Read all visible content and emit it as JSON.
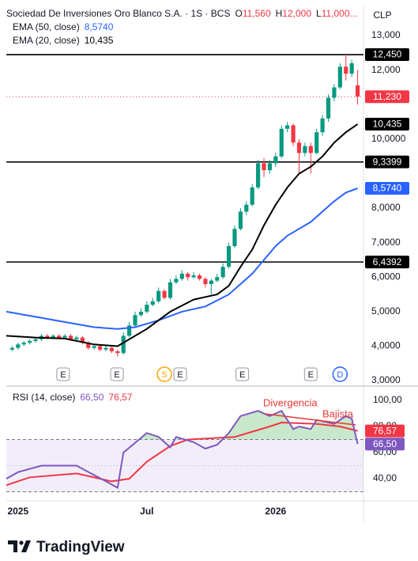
{
  "chart_data": [
    {
      "type": "candlestick",
      "title": "Sociedad De Inversiones Oro Blanco S.A. · 1S · BCS",
      "ohlc_header": [
        {
          "key": "O",
          "value": "11,560"
        },
        {
          "key": "H",
          "value": "12,000"
        },
        {
          "key": "L",
          "value": "11,000..."
        }
      ],
      "currency": "CLP",
      "open": [
        3.9,
        3.95,
        4.05,
        4.1,
        4.15,
        4.2,
        4.3,
        4.25,
        4.3,
        4.25,
        4.3,
        4.2,
        4.25,
        4.1,
        3.95,
        4.0,
        3.9,
        3.95,
        3.85,
        3.8,
        4.3,
        4.6,
        4.9,
        5.0,
        5.2,
        5.3,
        5.6,
        5.4,
        5.85,
        5.95,
        6.1,
        6.0,
        6.05,
        5.95,
        5.8,
        5.9,
        6.0,
        6.3,
        6.9,
        7.4,
        7.9,
        8.1,
        8.6,
        9.3,
        9.1,
        9.3,
        9.5,
        10.3,
        10.4,
        9.9,
        9.6,
        9.8,
        9.6,
        10.2,
        10.6,
        11.2,
        11.5,
        12.1,
        11.9,
        11.56
      ],
      "high": [
        4.0,
        4.1,
        4.15,
        4.2,
        4.25,
        4.35,
        4.35,
        4.35,
        4.35,
        4.35,
        4.35,
        4.3,
        4.3,
        4.15,
        4.05,
        4.05,
        4.0,
        4.0,
        3.9,
        4.4,
        4.7,
        5.0,
        5.1,
        5.3,
        5.4,
        5.7,
        5.65,
        5.95,
        6.05,
        6.2,
        6.15,
        6.15,
        6.1,
        6.0,
        5.95,
        6.1,
        6.4,
        7.0,
        7.5,
        8.0,
        8.2,
        8.7,
        9.4,
        9.45,
        9.4,
        9.6,
        10.4,
        10.5,
        10.45,
        10.0,
        9.9,
        9.9,
        10.3,
        10.7,
        11.3,
        11.6,
        12.2,
        12.45,
        12.3,
        12.0
      ],
      "low": [
        3.85,
        3.9,
        4.0,
        4.05,
        4.1,
        4.15,
        4.2,
        4.2,
        4.2,
        4.2,
        4.15,
        4.15,
        4.05,
        3.9,
        3.9,
        3.85,
        3.85,
        3.8,
        3.7,
        3.75,
        4.25,
        4.55,
        4.85,
        4.95,
        5.15,
        5.25,
        5.35,
        5.35,
        5.8,
        5.9,
        5.9,
        5.95,
        5.9,
        5.7,
        5.5,
        5.85,
        5.95,
        6.25,
        6.85,
        7.35,
        7.8,
        8.05,
        8.55,
        8.9,
        9.0,
        9.2,
        9.45,
        10.2,
        9.8,
        9.0,
        9.5,
        9.0,
        9.55,
        10.1,
        10.5,
        11.1,
        11.45,
        11.7,
        11.8,
        11.0
      ],
      "close": [
        3.95,
        4.05,
        4.1,
        4.15,
        4.2,
        4.3,
        4.25,
        4.3,
        4.25,
        4.3,
        4.2,
        4.25,
        4.1,
        3.95,
        4.0,
        3.9,
        3.95,
        3.85,
        3.8,
        4.3,
        4.6,
        4.9,
        5.0,
        5.2,
        5.3,
        5.6,
        5.4,
        5.85,
        5.95,
        6.1,
        6.0,
        6.05,
        5.95,
        5.8,
        5.9,
        6.0,
        6.3,
        6.9,
        7.4,
        7.9,
        8.1,
        8.6,
        9.3,
        9.1,
        9.3,
        9.5,
        10.3,
        10.4,
        9.9,
        9.6,
        9.8,
        9.6,
        10.2,
        10.6,
        11.2,
        11.5,
        12.1,
        11.9,
        12.2,
        11.23
      ],
      "up_color": "#089981",
      "down_color": "#f23645",
      "xlim": [
        0,
        61
      ],
      "xticks": [
        {
          "value": 2,
          "label": "2025"
        },
        {
          "value": 24,
          "label": "Jul"
        },
        {
          "value": 46,
          "label": "2026"
        }
      ],
      "ylim": [
        2.91,
        13.85
      ],
      "yticks": [
        {
          "value": 13,
          "label": "13,000"
        },
        {
          "value": 12,
          "label": "12,000"
        },
        {
          "value": 10,
          "label": "10,0000"
        },
        {
          "value": 8,
          "label": "8,0000"
        },
        {
          "value": 7,
          "label": "7,0000"
        },
        {
          "value": 6,
          "label": "6,0000"
        },
        {
          "value": 5,
          "label": "5,0000"
        },
        {
          "value": 4,
          "label": "4,0000"
        },
        {
          "value": 3,
          "label": "3,0000"
        }
      ],
      "series": [
        {
          "name": "EMA (50, close)",
          "color": "#2962ff",
          "x": [
            0,
            5,
            10,
            15,
            19,
            22,
            26,
            30,
            34,
            38,
            42,
            44,
            46,
            48,
            50,
            52,
            54,
            56,
            58,
            60
          ],
          "values": [
            5.0,
            4.85,
            4.7,
            4.55,
            4.5,
            4.55,
            4.75,
            5.0,
            5.15,
            5.5,
            6.1,
            6.5,
            6.9,
            7.2,
            7.4,
            7.6,
            7.9,
            8.2,
            8.45,
            8.574
          ],
          "last_label": "8,5740"
        },
        {
          "name": "EMA (20, close)",
          "color": "#000000",
          "x": [
            0,
            5,
            10,
            15,
            19,
            20,
            24,
            28,
            32,
            36,
            38,
            40,
            42,
            44,
            46,
            48,
            50,
            52,
            54,
            56,
            58,
            60
          ],
          "values": [
            4.3,
            4.25,
            4.22,
            4.05,
            4.0,
            4.1,
            4.5,
            5.0,
            5.35,
            5.5,
            5.75,
            6.3,
            6.8,
            7.5,
            8.1,
            8.6,
            9.0,
            9.2,
            9.5,
            9.9,
            10.2,
            10.435
          ],
          "last_label": "10,435"
        }
      ],
      "hlines": [
        {
          "value": 12.45,
          "label": "12,450"
        },
        {
          "value": 9.3399,
          "label": "9,3399"
        },
        {
          "value": 6.4392,
          "label": "6,4392"
        }
      ],
      "last_price": {
        "value": 11.23,
        "label": "11,230",
        "color": "#f23645"
      },
      "events": [
        {
          "label": "E",
          "x": 9.7,
          "color": "#131722"
        },
        {
          "label": "E",
          "x": 18.9,
          "color": "#131722"
        },
        {
          "label": "S",
          "x": 27,
          "color": "#f7a600"
        },
        {
          "label": "E",
          "x": 29.7,
          "color": "#131722"
        },
        {
          "label": "E",
          "x": 40.3,
          "color": "#131722"
        },
        {
          "label": "E",
          "x": 52,
          "color": "#131722"
        },
        {
          "label": "D",
          "x": 57,
          "color": "#2962ff"
        }
      ]
    },
    {
      "type": "line",
      "title": "RSI (14, close)",
      "xlim": [
        0,
        61
      ],
      "ylim": [
        23.6,
        109.7
      ],
      "yticks": [
        {
          "value": 100,
          "label": "100,00"
        },
        {
          "value": 80,
          "label": "80,00"
        },
        {
          "value": 60,
          "label": "60,00"
        },
        {
          "value": 40,
          "label": "40,00"
        }
      ],
      "levels": [
        70,
        50,
        30
      ],
      "band_color": "#7e57c2",
      "overbought_color": "#4caf50",
      "series": [
        {
          "color": "#7e57c2",
          "x": [
            0,
            2,
            6,
            12,
            17,
            19,
            20,
            24,
            26,
            28,
            29,
            32,
            34,
            36,
            38,
            40,
            43,
            45,
            47,
            49,
            50,
            52,
            53,
            56,
            58,
            59,
            60
          ],
          "values": [
            40,
            45,
            50,
            50,
            38,
            33,
            60,
            75,
            72,
            64,
            72,
            68,
            63,
            66,
            75,
            88,
            92,
            88,
            92,
            78,
            80,
            78,
            85,
            82,
            88,
            86,
            66.5
          ],
          "last_label": "66,50"
        },
        {
          "color": "#f23645",
          "x": [
            0,
            4,
            12,
            18,
            21,
            24,
            28,
            31,
            39,
            45,
            47,
            53,
            57,
            60
          ],
          "values": [
            35,
            41,
            44,
            38,
            40,
            53,
            65,
            70,
            72,
            80,
            83,
            82,
            80,
            76.57
          ],
          "last_label": "76,57"
        }
      ],
      "annotations": [
        "Divergencia",
        "Bajista"
      ]
    }
  ],
  "footer": {
    "brand": "TradingView"
  }
}
